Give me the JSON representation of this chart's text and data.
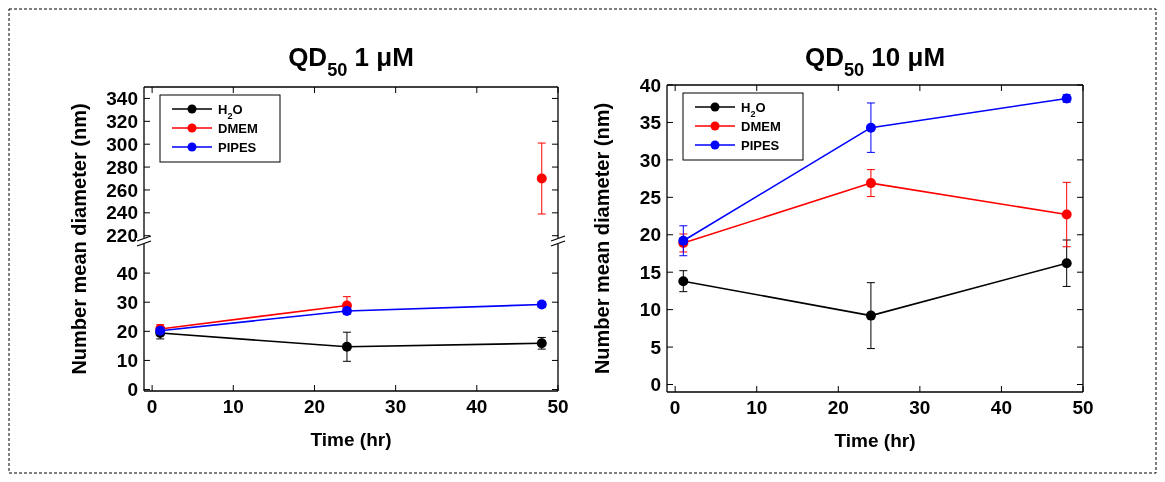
{
  "chart_data": [
    {
      "type": "line",
      "title": "QD$_{50}$ 1 μM",
      "ylabel": "Number mean diameter (nm)",
      "xlim": [
        -1,
        50
      ],
      "xticks": [
        0,
        10,
        20,
        30,
        40,
        50
      ],
      "ylim": [
        218,
        350
      ],
      "yticks": [
        220,
        240,
        260,
        280,
        300,
        320,
        340
      ],
      "tick_labels": "y",
      "marker": "circle",
      "legend": "top left",
      "series": [
        {
          "name": "H$_{2}$O",
          "color": "#000000"
        },
        {
          "name": "DMEM",
          "color": "#ff0000",
          "x": [
            48
          ],
          "values": [
            270
          ],
          "errors": [
            31
          ]
        },
        {
          "name": "PIPES",
          "color": "#0000ff"
        }
      ]
    },
    {
      "type": "line",
      "xlabel": "Time (hr)",
      "x": [
        1,
        24,
        48
      ],
      "xlim": [
        -1,
        50
      ],
      "xticks": [
        0,
        10,
        20,
        30,
        40,
        50
      ],
      "ylim": [
        -0.5,
        50
      ],
      "yticks": [
        0,
        10,
        20,
        30,
        40
      ],
      "marker": "circle",
      "series": [
        {
          "color": "#000000",
          "values": [
            19.4,
            14.7,
            15.9
          ],
          "errors": [
            2,
            5,
            2
          ]
        },
        {
          "color": "#ff0000",
          "values": [
            20.8,
            28.9,
            null
          ],
          "errors": [
            1.5,
            3,
            null
          ]
        },
        {
          "color": "#0000ff",
          "values": [
            20.2,
            27,
            29.2
          ],
          "errors": [
            1,
            1,
            1
          ]
        }
      ]
    },
    {
      "type": "line",
      "title": "QD$_{50}$ 10 μM",
      "xlabel": "Time (hr)",
      "ylabel": "Number mean diameter (nm)",
      "x": [
        1,
        24,
        48
      ],
      "xlim": [
        -1,
        50
      ],
      "xticks": [
        0,
        10,
        20,
        30,
        40,
        50
      ],
      "ylim": [
        -1,
        40
      ],
      "yticks": [
        0,
        5,
        10,
        15,
        20,
        25,
        30,
        35,
        40
      ],
      "marker": "circle",
      "legend": "top left",
      "series": [
        {
          "name": "H$_{2}$O",
          "color": "#000000",
          "values": [
            13.8,
            9.2,
            16.2
          ],
          "errors": [
            1.4,
            4.4,
            3.1
          ]
        },
        {
          "name": "DMEM",
          "color": "#ff0000",
          "values": [
            18.9,
            26.9,
            22.7
          ],
          "errors": [
            1.2,
            1.8,
            4.3
          ]
        },
        {
          "name": "PIPES",
          "color": "#0000ff",
          "values": [
            19.2,
            34.3,
            38.2
          ],
          "errors": [
            2,
            3.3,
            0.5
          ]
        }
      ]
    }
  ]
}
